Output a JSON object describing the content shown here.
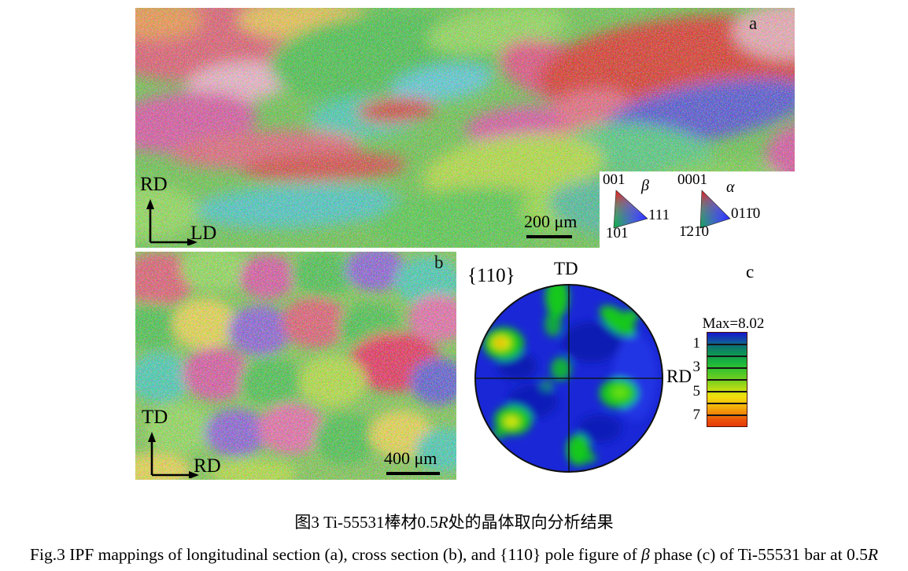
{
  "figure": {
    "panels": {
      "a": {
        "label": "a",
        "axis_vertical": "RD",
        "axis_horizontal": "LD",
        "scale_bar": "200 μm"
      },
      "b": {
        "label": "b",
        "axis_vertical": "TD",
        "axis_horizontal": "RD",
        "scale_bar": "400 μm"
      },
      "c": {
        "label": "c",
        "pole_family": "{110}",
        "axis_top": "TD",
        "axis_right": "RD",
        "colorbar": {
          "max_label": "Max=8.02",
          "ticks": [
            "1",
            "3",
            "5",
            "7"
          ],
          "gradient_top_to_bottom": [
            "#1616cf",
            "#0c7a6a",
            "#0f9e4e",
            "#3cc42c",
            "#7ed01e",
            "#f0e00c",
            "#f08808",
            "#e63808"
          ]
        }
      }
    },
    "legend": {
      "beta": {
        "phase_symbol": "β",
        "corner_top": "001",
        "corner_bottom_left": "101",
        "corner_right": "111"
      },
      "alpha": {
        "phase_symbol": "α",
        "corner_top": "0001",
        "corner_bottom_left": "1̄21̄0",
        "corner_right": "011̄0"
      }
    },
    "caption_cn_segments": [
      {
        "text": "图3  Ti-55531棒材0.5"
      },
      {
        "text": "R",
        "italic": true
      },
      {
        "text": "处的晶体取向分析结果"
      }
    ],
    "caption_en_segments": [
      {
        "text": "Fig.3  IPF mappings of longitudinal section (a), cross section (b), and {110} pole figure of "
      },
      {
        "text": "β",
        "italic": true
      },
      {
        "text": " phase (c) of Ti-55531 bar at 0.5"
      },
      {
        "text": "R",
        "italic": true
      }
    ]
  }
}
